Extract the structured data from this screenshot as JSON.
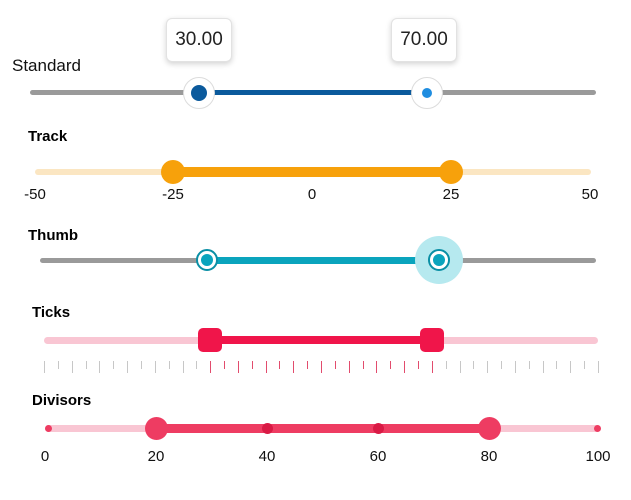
{
  "standard": {
    "title": "Standard",
    "start_value": "30.00",
    "end_value": "70.00",
    "range": [
      0,
      100
    ],
    "colors": {
      "inactive": "#9a9a9a",
      "active": "#0b5a9c",
      "thumb_left": "#0b5a9c",
      "thumb_right": "#1f8de0"
    }
  },
  "track": {
    "title": "Track",
    "labels": [
      "-50",
      "-25",
      "0",
      "25",
      "50"
    ],
    "range": [
      -50,
      50
    ],
    "start": -25,
    "end": 25,
    "colors": {
      "inactive": "#fbe6c2",
      "active": "#f7a10b"
    }
  },
  "thumb": {
    "title": "Thumb",
    "range": [
      0,
      100
    ],
    "start": 30,
    "end": 72,
    "colors": {
      "inactive": "#9a9a9a",
      "active": "#0aa4bd",
      "halo": "#b6e9ef"
    }
  },
  "ticks": {
    "title": "Ticks",
    "range": [
      0,
      100
    ],
    "start": 30,
    "end": 70,
    "colors": {
      "inactive": "#f9c6d3",
      "active": "#f0154a",
      "tick_inactive": "#c7c7c7",
      "tick_active": "#e24c6d"
    }
  },
  "divisors": {
    "title": "Divisors",
    "labels": [
      "0",
      "20",
      "40",
      "60",
      "80",
      "100"
    ],
    "range": [
      0,
      100
    ],
    "start": 20,
    "end": 80,
    "colors": {
      "inactive": "#f9c6d3",
      "active": "#ee3c62"
    }
  }
}
